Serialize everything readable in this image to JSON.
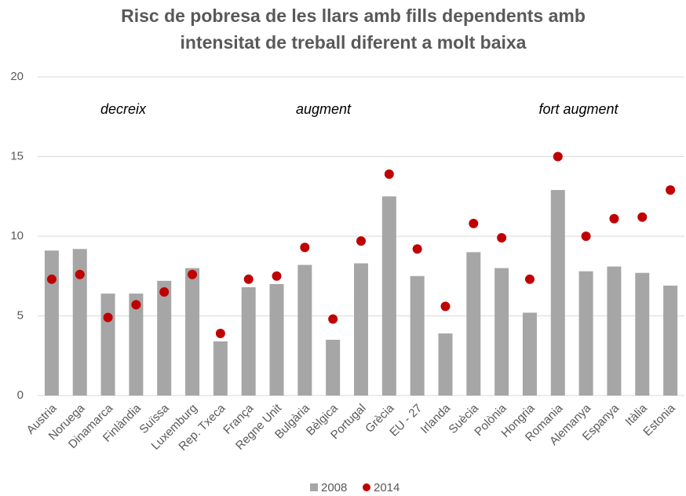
{
  "chart_data": {
    "type": "bar_dot",
    "title": [
      "Risc de pobresa de les llars amb fills dependents amb",
      "intensitat de treball diferent a molt baixa"
    ],
    "annotations": [
      "decreix",
      "augment",
      "fort augment"
    ],
    "categories": [
      "Austria",
      "Noruega",
      "Dinamarca",
      "Finlàndia",
      "Suïssa",
      "Luxemburg",
      "Rep. Txeca",
      "França",
      "Regne Unit",
      "Bulgària",
      "Bèlgica",
      "Portugal",
      "Grècia",
      "EU - 27",
      "Irlanda",
      "Suècia",
      "Polònia",
      "Hongria",
      "Romania",
      "Alemanya",
      "Espanya",
      "Itàlia",
      "Estonia"
    ],
    "series": [
      {
        "name": "2008",
        "color": "#a6a6a6",
        "mark": "bar",
        "values": [
          9.1,
          9.2,
          6.4,
          6.4,
          7.2,
          8.0,
          3.4,
          6.8,
          7.0,
          8.2,
          3.5,
          8.3,
          12.5,
          7.5,
          3.9,
          9.0,
          8.0,
          5.2,
          12.9,
          7.8,
          8.1,
          7.7,
          6.9
        ]
      },
      {
        "name": "2014",
        "color": "#c00000",
        "mark": "dot",
        "values": [
          7.3,
          7.6,
          4.9,
          5.7,
          6.5,
          7.6,
          3.9,
          7.3,
          7.5,
          9.3,
          4.8,
          9.7,
          13.9,
          9.2,
          5.6,
          10.8,
          9.9,
          7.3,
          15.0,
          10.0,
          11.1,
          11.2,
          12.9
        ]
      }
    ],
    "ylim": [
      0,
      20
    ],
    "yticks": [
      0,
      5,
      10,
      15,
      20
    ],
    "grid": true,
    "legend": "bottom"
  }
}
